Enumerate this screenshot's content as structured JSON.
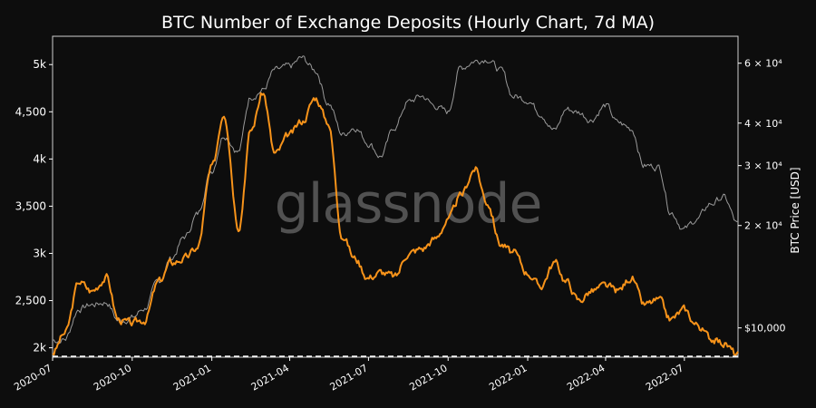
{
  "chart_data": {
    "type": "line",
    "title": "BTC Number of Exchange Deposits (Hourly Chart, 7d MA)",
    "watermark": "glassnode",
    "ylabel": "",
    "y2label": "BTC Price [USD]",
    "ylim": [
      1900,
      5300
    ],
    "y2_scale": "log",
    "y2lim": [
      8200,
      72000
    ],
    "x_ticks": [
      "2020-07",
      "2020-10",
      "2021-01",
      "2021-04",
      "2021-07",
      "2021-10",
      "2022-01",
      "2022-04",
      "2022-07"
    ],
    "y_ticks": [
      {
        "value": 2000,
        "label": "2k"
      },
      {
        "value": 2500,
        "label": "2,500"
      },
      {
        "value": 3000,
        "label": "3k"
      },
      {
        "value": 3500,
        "label": "3,500"
      },
      {
        "value": 4000,
        "label": "4k"
      },
      {
        "value": 4500,
        "label": "4,500"
      },
      {
        "value": 5000,
        "label": "5k"
      }
    ],
    "y2_ticks": [
      {
        "value": 10000,
        "label": "$10,000"
      },
      {
        "value": 20000,
        "label": "2 × 10⁴"
      },
      {
        "value": 30000,
        "label": "3 × 10⁴"
      },
      {
        "value": 40000,
        "label": "4 × 10⁴"
      },
      {
        "value": 60000,
        "label": "6 × 10⁴"
      }
    ],
    "reference_line": {
      "value": 1910,
      "style": "dashed"
    },
    "colors": {
      "deposits": "#f7931a",
      "price": "#9a9a9a",
      "background": "#0d0d0d",
      "axis": "#ffffff"
    },
    "x": [
      "2020-07-01",
      "2020-07-15",
      "2020-08-01",
      "2020-08-15",
      "2020-09-01",
      "2020-09-15",
      "2020-10-01",
      "2020-10-15",
      "2020-11-01",
      "2020-11-15",
      "2020-12-01",
      "2020-12-15",
      "2021-01-01",
      "2021-01-15",
      "2021-02-01",
      "2021-02-15",
      "2021-03-01",
      "2021-03-15",
      "2021-04-01",
      "2021-04-15",
      "2021-05-01",
      "2021-05-15",
      "2021-06-01",
      "2021-06-15",
      "2021-07-01",
      "2021-07-15",
      "2021-08-01",
      "2021-08-15",
      "2021-09-01",
      "2021-09-15",
      "2021-10-01",
      "2021-10-15",
      "2021-11-01",
      "2021-11-15",
      "2021-12-01",
      "2021-12-15",
      "2022-01-01",
      "2022-01-15",
      "2022-02-01",
      "2022-02-15",
      "2022-03-01",
      "2022-03-15",
      "2022-04-01",
      "2022-04-15",
      "2022-05-01",
      "2022-05-15",
      "2022-06-01",
      "2022-06-15",
      "2022-07-01",
      "2022-07-15",
      "2022-08-01",
      "2022-08-15",
      "2022-09-01"
    ],
    "series": [
      {
        "axis": "left",
        "values": [
          1950,
          2150,
          2700,
          2600,
          2750,
          2300,
          2250,
          2300,
          2700,
          2900,
          2950,
          3050,
          3900,
          4500,
          3300,
          4300,
          4700,
          4050,
          4250,
          4400,
          4650,
          4400,
          3200,
          2950,
          2750,
          2800,
          2750,
          3000,
          3050,
          3150,
          3350,
          3600,
          3900,
          3550,
          3100,
          3000,
          2800,
          2650,
          2900,
          2700,
          2500,
          2600,
          2650,
          2600,
          2750,
          2450,
          2500,
          2300,
          2400,
          2250,
          2100,
          2050,
          1920
        ]
      },
      {
        "axis": "right",
        "values": [
          9200,
          9250,
          11400,
          11700,
          11900,
          10500,
          10700,
          11400,
          13700,
          16000,
          18500,
          21500,
          29000,
          37000,
          33000,
          48000,
          50000,
          57000,
          58500,
          62000,
          57000,
          46000,
          37000,
          39000,
          35000,
          32000,
          39000,
          46000,
          48000,
          45000,
          43000,
          58000,
          61000,
          62000,
          57000,
          48000,
          47000,
          43000,
          38000,
          44000,
          43000,
          41000,
          45000,
          40000,
          38500,
          30000,
          29800,
          22000,
          19500,
          20800,
          23200,
          24200,
          20100
        ]
      }
    ]
  }
}
